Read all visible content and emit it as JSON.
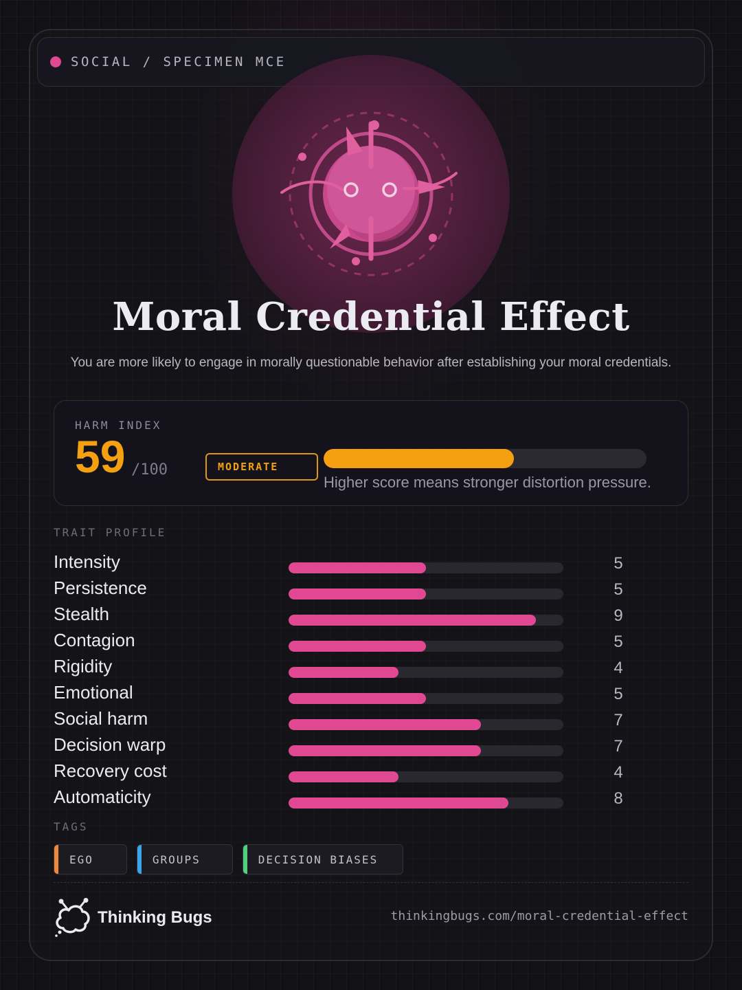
{
  "header": {
    "category": "SOCIAL / SPECIMEN MCE",
    "dot_color": "#E04992"
  },
  "emblem": {
    "icon": "bug-emblem-icon"
  },
  "title": "Moral Credential Effect",
  "subtitle": "You are more likely to engage in morally questionable behavior after establishing your moral credentials.",
  "harm_index": {
    "label": "HARM INDEX",
    "score": "59",
    "max": "/100",
    "score_fraction": 0.59,
    "level": "MODERATE",
    "note": "Higher score means stronger distortion pressure.",
    "accent": "#F4A011"
  },
  "trait_profile": {
    "label": "TRAIT PROFILE",
    "bar_color": "#E04992",
    "max_value": 10,
    "traits": [
      {
        "name": "Intensity",
        "value": "5"
      },
      {
        "name": "Persistence",
        "value": "5"
      },
      {
        "name": "Stealth",
        "value": "9"
      },
      {
        "name": "Contagion",
        "value": "5"
      },
      {
        "name": "Rigidity",
        "value": "4"
      },
      {
        "name": "Emotional",
        "value": "5"
      },
      {
        "name": "Social harm",
        "value": "7"
      },
      {
        "name": "Decision warp",
        "value": "7"
      },
      {
        "name": "Recovery cost",
        "value": "4"
      },
      {
        "name": "Automaticity",
        "value": "8"
      }
    ]
  },
  "tags": {
    "label": "TAGS",
    "items": [
      {
        "label": "EGO",
        "color": "#F0883C"
      },
      {
        "label": "GROUPS",
        "color": "#3AA8E8"
      },
      {
        "label": "DECISION BIASES",
        "color": "#4ED07E"
      }
    ]
  },
  "footer": {
    "brand": "Thinking Bugs",
    "logo_icon": "thinking-bugs-logo-icon",
    "url": "thinkingbugs.com/moral-credential-effect"
  }
}
